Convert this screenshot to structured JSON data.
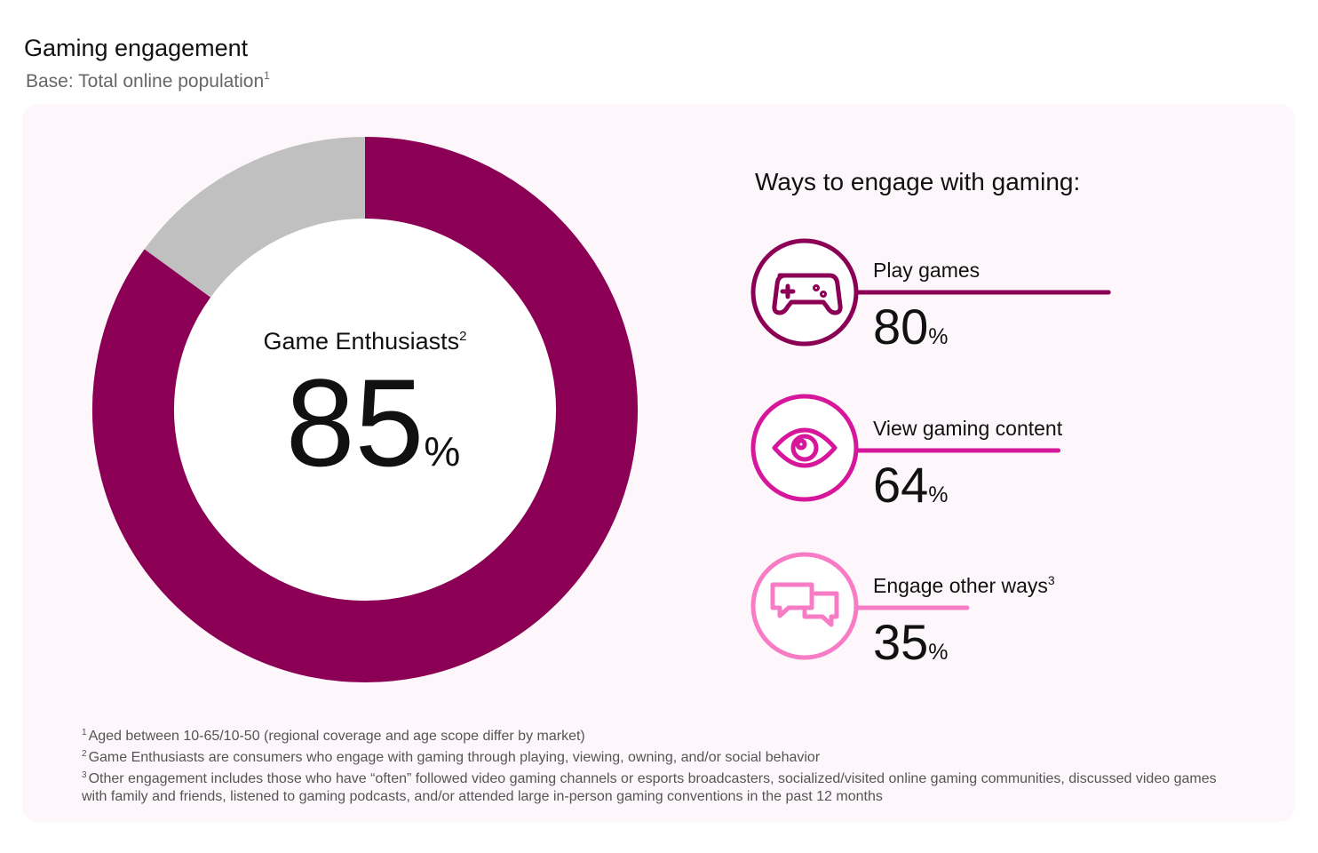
{
  "title": "Gaming engagement",
  "subtitle": "Base: Total online population",
  "subtitle_note": "1",
  "chart_data": [
    {
      "type": "donut",
      "label": "Game Enthusiasts",
      "label_note": "2",
      "value": 85,
      "unit": "%",
      "color": "#8b0055",
      "rest_color": "#c0c0c0"
    },
    {
      "type": "bar",
      "title": "Ways to engage with gaming:",
      "categories": [
        "Play games",
        "View gaming content",
        "Engage other ways"
      ],
      "category_notes": [
        null,
        null,
        "3"
      ],
      "values": [
        80,
        64,
        35
      ],
      "unit": "%",
      "colors": [
        "#8b0055",
        "#d6179b",
        "#f77bc5"
      ]
    }
  ],
  "footnotes": [
    {
      "mark": "1",
      "text": "Aged between 10-65/10-50 (regional coverage and age scope differ by market)"
    },
    {
      "mark": "2",
      "text": "Game Enthusiasts are consumers who engage with gaming through playing, viewing, owning, and/or social behavior"
    },
    {
      "mark": "3",
      "text": "Other engagement includes those who have “often” followed video gaming channels or esports broadcasters, socialized/visited online gaming communities, discussed video games with family and friends, listened to gaming podcasts, and/or attended large in-person gaming conventions in the past 12 months"
    }
  ]
}
